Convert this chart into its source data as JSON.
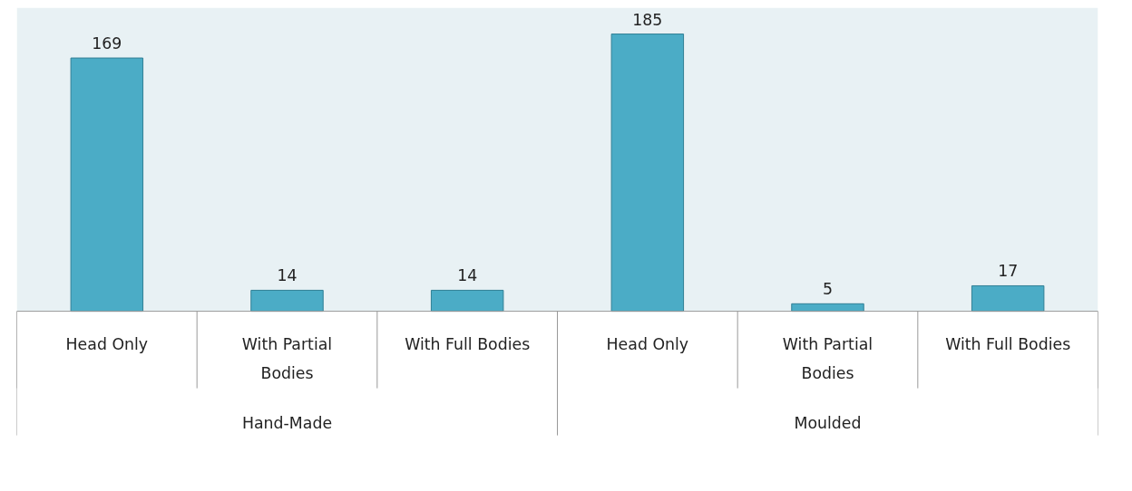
{
  "chart_data": {
    "type": "bar",
    "categories": [
      "Head Only",
      "With Partial Bodies",
      "With Full Bodies",
      "Head Only",
      "With Partial Bodies",
      "With Full Bodies"
    ],
    "values": [
      169,
      14,
      14,
      185,
      5,
      17
    ],
    "color": "#4bacc6",
    "data_labels": true,
    "annotations": [
      "Hand-Made",
      "Moulded"
    ],
    "grid": false
  }
}
